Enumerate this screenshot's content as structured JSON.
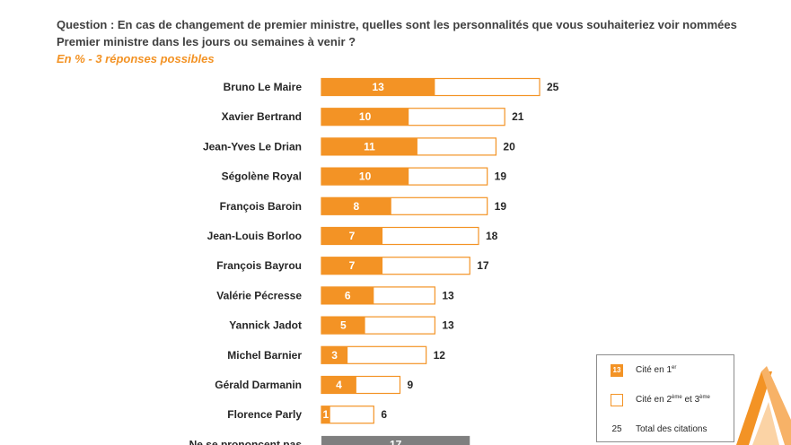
{
  "header": {
    "question": "Question : En cas de changement de premier ministre, quelles sont les personnalités que vous souhaiteriez voir nommées Premier ministre dans les jours ou semaines à venir ?",
    "subtitle": "En  % - 3 réponses possibles"
  },
  "colors": {
    "first_mention": "#f39325",
    "bar_border": "#f39325",
    "other_bar": "#7f7f7f",
    "text": "#262626"
  },
  "chart_data": {
    "type": "bar",
    "orientation": "horizontal",
    "stacked": true,
    "categories": [
      "Bruno Le Maire",
      "Xavier Bertrand",
      "Jean-Yves Le Drian",
      "Ségolène Royal",
      "François Baroin",
      "Jean-Louis Borloo",
      "François Bayrou",
      "Valérie Pécresse",
      "Yannick Jadot",
      "Michel Barnier",
      "Gérald Darmanin",
      "Florence Parly",
      "Ne se prononcent pas"
    ],
    "series": [
      {
        "name": "Cité en 1er",
        "values": [
          13,
          10,
          11,
          10,
          8,
          7,
          7,
          6,
          5,
          3,
          4,
          1,
          null
        ]
      },
      {
        "name": "Total des citations",
        "values": [
          25,
          21,
          20,
          19,
          19,
          18,
          17,
          13,
          13,
          12,
          9,
          6,
          17
        ]
      }
    ],
    "legend_position": "bottom-right",
    "grid": false
  },
  "legend": {
    "items": [
      {
        "sample": "13",
        "text": "Cité en 1",
        "sup": "er",
        "tail": ""
      },
      {
        "sample": "",
        "text": "Cité en 2",
        "sup": "ème",
        "tail": " et 3",
        "sup2": "ème"
      },
      {
        "sample": "25",
        "text": "Total des citations"
      }
    ]
  }
}
